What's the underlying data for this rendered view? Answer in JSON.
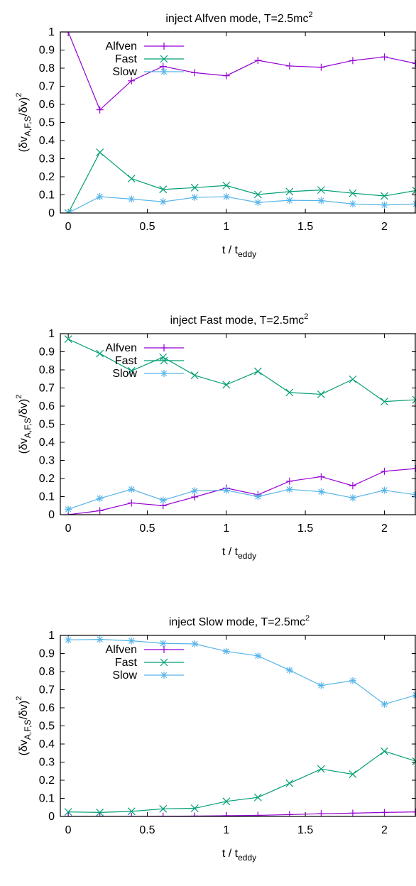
{
  "chart_data": [
    {
      "type": "line",
      "title": "inject Alfven mode, T=2.5mc",
      "title_sup": "2",
      "xlabel": "t / t",
      "xlabel_sub": "eddy",
      "ylabel": "(δv",
      "ylabel_sub": "A,F,S",
      "ylabel_tail": "/δv)",
      "ylabel_sup": "2",
      "xlim": [
        -0.05,
        2.2
      ],
      "ylim": [
        0,
        1
      ],
      "xticks": [
        "0",
        "0.5",
        "1",
        "1.5",
        "2"
      ],
      "yticks": [
        "0",
        "0.1",
        "0.2",
        "0.3",
        "0.4",
        "0.5",
        "0.6",
        "0.7",
        "0.8",
        "0.9",
        "1"
      ],
      "grid": false,
      "legend_position": "top-left",
      "x": [
        0,
        0.2,
        0.4,
        0.6,
        0.8,
        1.0,
        1.2,
        1.4,
        1.6,
        1.8,
        2.0,
        2.2
      ],
      "series": [
        {
          "name": "Alfven",
          "color": "#9400d3",
          "marker": "plus",
          "values": [
            1.0,
            0.57,
            0.73,
            0.81,
            0.775,
            0.758,
            0.843,
            0.812,
            0.805,
            0.842,
            0.862,
            0.826
          ]
        },
        {
          "name": "Fast",
          "color": "#009e73",
          "marker": "cross",
          "values": [
            0.0,
            0.335,
            0.19,
            0.13,
            0.14,
            0.152,
            0.102,
            0.118,
            0.127,
            0.109,
            0.094,
            0.124
          ]
        },
        {
          "name": "Slow",
          "color": "#56b4e9",
          "marker": "star",
          "values": [
            0.0,
            0.09,
            0.077,
            0.062,
            0.086,
            0.09,
            0.058,
            0.07,
            0.068,
            0.05,
            0.044,
            0.05
          ]
        }
      ]
    },
    {
      "type": "line",
      "title": "inject Fast mode, T=2.5mc",
      "title_sup": "2",
      "xlabel": "t / t",
      "xlabel_sub": "eddy",
      "ylabel": "(δv",
      "ylabel_sub": "A,F,S",
      "ylabel_tail": "/δv)",
      "ylabel_sup": "2",
      "xlim": [
        -0.05,
        2.2
      ],
      "ylim": [
        0,
        1
      ],
      "xticks": [
        "0",
        "0.5",
        "1",
        "1.5",
        "2"
      ],
      "yticks": [
        "0",
        "0.1",
        "0.2",
        "0.3",
        "0.4",
        "0.5",
        "0.6",
        "0.7",
        "0.8",
        "0.9",
        "1"
      ],
      "grid": false,
      "legend_position": "top-left",
      "x": [
        0,
        0.2,
        0.4,
        0.6,
        0.8,
        1.0,
        1.2,
        1.4,
        1.6,
        1.8,
        2.0,
        2.2
      ],
      "series": [
        {
          "name": "Alfven",
          "color": "#9400d3",
          "marker": "plus",
          "values": [
            0.0,
            0.022,
            0.065,
            0.05,
            0.098,
            0.147,
            0.11,
            0.185,
            0.21,
            0.16,
            0.24,
            0.255
          ]
        },
        {
          "name": "Fast",
          "color": "#009e73",
          "marker": "cross",
          "values": [
            0.97,
            0.89,
            0.795,
            0.87,
            0.77,
            0.718,
            0.792,
            0.675,
            0.665,
            0.748,
            0.625,
            0.635
          ]
        },
        {
          "name": "Slow",
          "color": "#56b4e9",
          "marker": "star",
          "values": [
            0.03,
            0.09,
            0.14,
            0.08,
            0.132,
            0.135,
            0.1,
            0.14,
            0.127,
            0.093,
            0.135,
            0.11
          ]
        }
      ]
    },
    {
      "type": "line",
      "title": "inject Slow mode, T=2.5mc",
      "title_sup": "2",
      "xlabel": "t / t",
      "xlabel_sub": "eddy",
      "ylabel": "(δv",
      "ylabel_sub": "A,F,S",
      "ylabel_tail": "/δv)",
      "ylabel_sup": "2",
      "xlim": [
        -0.05,
        2.2
      ],
      "ylim": [
        0,
        1
      ],
      "xticks": [
        "0",
        "0.5",
        "1",
        "1.5",
        "2"
      ],
      "yticks": [
        "0",
        "0.1",
        "0.2",
        "0.3",
        "0.4",
        "0.5",
        "0.6",
        "0.7",
        "0.8",
        "0.9",
        "1"
      ],
      "grid": false,
      "legend_position": "top-left",
      "x": [
        0,
        0.2,
        0.4,
        0.6,
        0.8,
        1.0,
        1.2,
        1.4,
        1.6,
        1.8,
        2.0,
        2.2
      ],
      "series": [
        {
          "name": "Alfven",
          "color": "#9400d3",
          "marker": "plus",
          "values": [
            0.0,
            0.0,
            0.0,
            0.001,
            0.002,
            0.004,
            0.006,
            0.01,
            0.015,
            0.018,
            0.022,
            0.025
          ]
        },
        {
          "name": "Fast",
          "color": "#009e73",
          "marker": "cross",
          "values": [
            0.025,
            0.022,
            0.028,
            0.042,
            0.045,
            0.083,
            0.105,
            0.183,
            0.262,
            0.233,
            0.36,
            0.305
          ]
        },
        {
          "name": "Slow",
          "color": "#56b4e9",
          "marker": "star",
          "values": [
            0.975,
            0.978,
            0.97,
            0.956,
            0.953,
            0.912,
            0.887,
            0.808,
            0.723,
            0.75,
            0.62,
            0.67
          ]
        }
      ]
    }
  ]
}
